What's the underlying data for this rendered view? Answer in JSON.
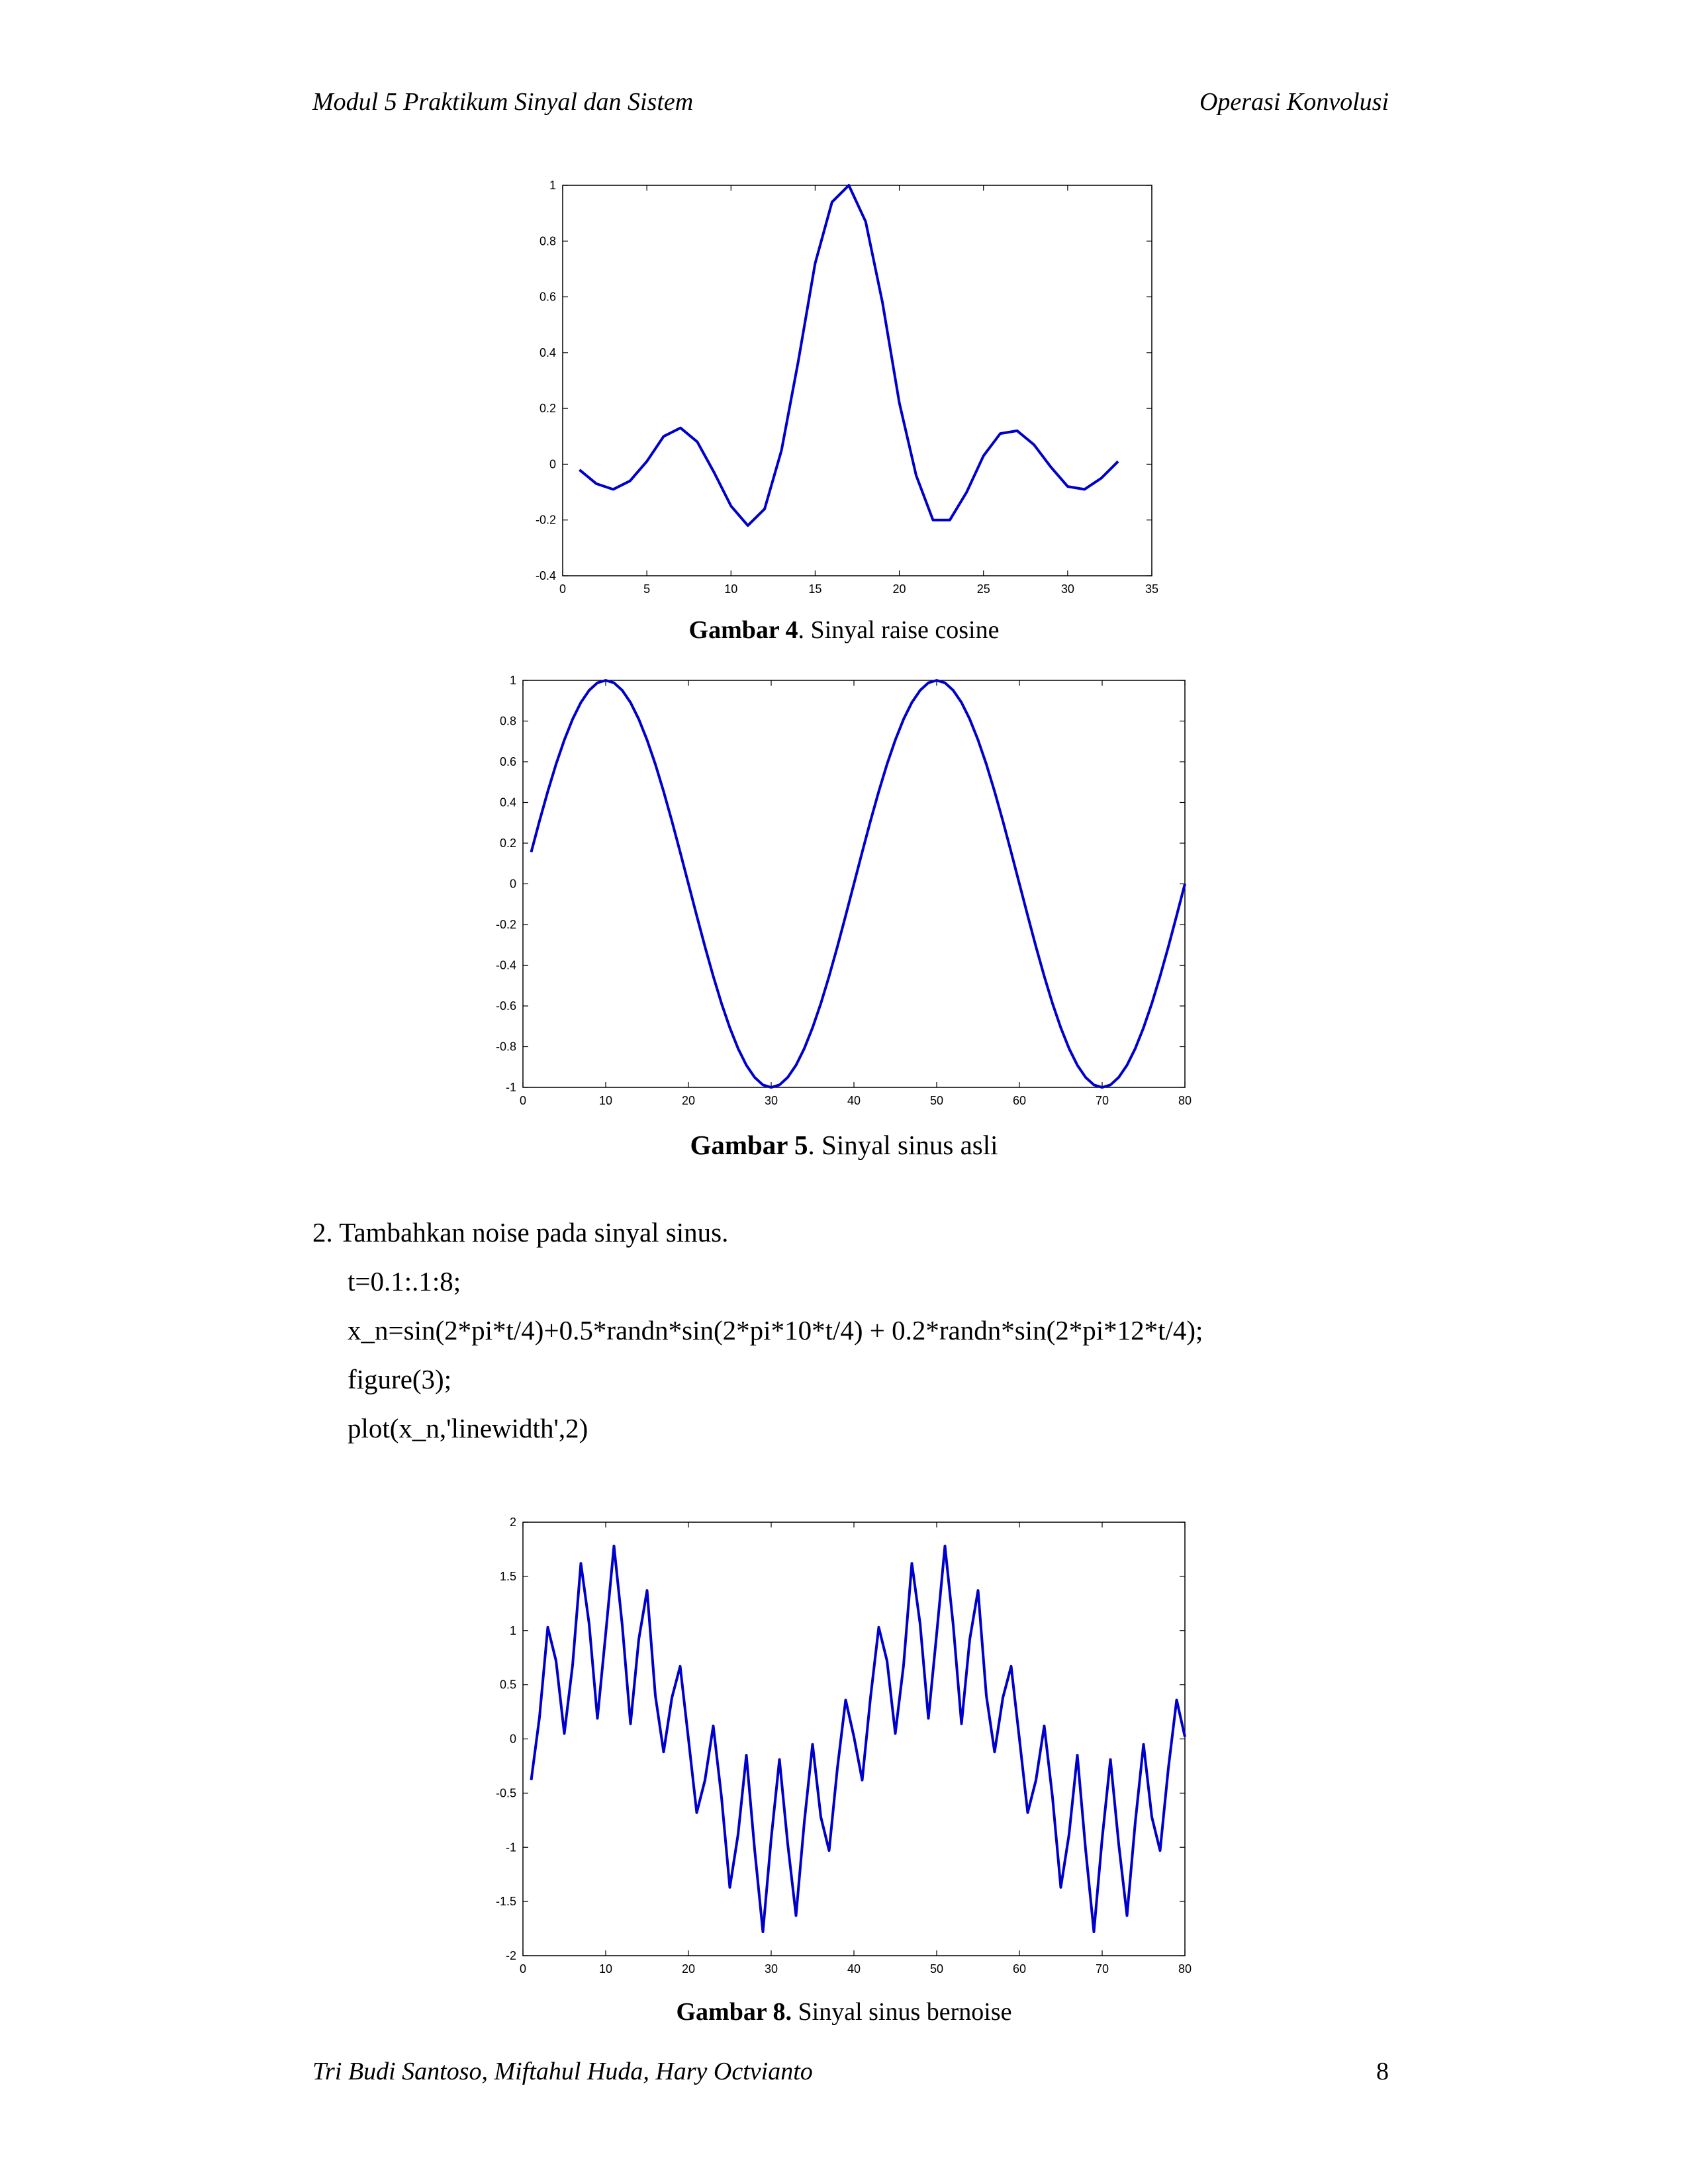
{
  "header": {
    "left": "Modul 5 Praktikum Sinyal dan Sistem",
    "right": "Operasi Konvolusi"
  },
  "footer": {
    "authors": "Tri Budi Santoso, Miftahul Huda, Hary Octvianto",
    "page_number": "8"
  },
  "figures": [
    {
      "label": "Gambar 4",
      "caption": ". Sinyal raise cosine"
    },
    {
      "label": "Gambar 5",
      "caption": ". Sinyal sinus asli"
    },
    {
      "label": "Gambar 8.",
      "caption": " Sinyal sinus bernoise"
    }
  ],
  "step": {
    "text": "2. Tambahkan noise pada sinyal sinus.",
    "code": [
      "t=0.1:.1:8;",
      "x_n=sin(2*pi*t/4)+0.5*randn*sin(2*pi*10*t/4) + 0.2*randn*sin(2*pi*12*t/4);",
      "figure(3);",
      "plot(x_n,'linewidth',2)"
    ]
  },
  "chart_data": [
    {
      "type": "line",
      "title": "",
      "xlabel": "",
      "ylabel": "",
      "xlim": [
        0,
        35
      ],
      "ylim": [
        -0.4,
        1
      ],
      "xticks": [
        "0",
        "5",
        "10",
        "15",
        "20",
        "25",
        "30",
        "35"
      ],
      "yticks": [
        "-0.4",
        "-0.2",
        "0",
        "0.2",
        "0.4",
        "0.6",
        "0.8",
        "1"
      ],
      "line_color": "#0000cc",
      "series": [
        {
          "x": [
            1,
            2,
            3,
            4,
            5,
            6,
            7,
            8,
            9,
            10,
            11,
            12,
            13,
            14,
            15,
            16,
            17,
            18,
            19,
            20,
            21,
            22,
            23,
            24,
            25,
            26,
            27,
            28,
            29,
            30,
            31,
            32,
            33
          ],
          "y": [
            -0.02,
            -0.07,
            -0.09,
            -0.06,
            0.01,
            0.1,
            0.13,
            0.08,
            -0.03,
            -0.15,
            -0.22,
            -0.16,
            0.05,
            0.37,
            0.72,
            0.94,
            1.0,
            0.87,
            0.58,
            0.22,
            -0.04,
            -0.2,
            -0.2,
            -0.1,
            0.03,
            0.11,
            0.12,
            0.07,
            -0.01,
            -0.08,
            -0.09,
            -0.05,
            0.01
          ]
        }
      ]
    },
    {
      "type": "line",
      "title": "",
      "xlabel": "",
      "ylabel": "",
      "xlim": [
        0,
        80
      ],
      "ylim": [
        -1,
        1
      ],
      "xticks": [
        "0",
        "10",
        "20",
        "30",
        "40",
        "50",
        "60",
        "70",
        "80"
      ],
      "yticks": [
        "-1",
        "-0.8",
        "-0.6",
        "-0.4",
        "-0.2",
        "0",
        "0.2",
        "0.4",
        "0.6",
        "0.8",
        "1"
      ],
      "line_color": "#0000cc",
      "series": [
        {
          "x": [
            1,
            2,
            3,
            4,
            5,
            6,
            7,
            8,
            9,
            10,
            11,
            12,
            13,
            14,
            15,
            16,
            17,
            18,
            19,
            20,
            21,
            22,
            23,
            24,
            25,
            26,
            27,
            28,
            29,
            30,
            31,
            32,
            33,
            34,
            35,
            36,
            37,
            38,
            39,
            40,
            41,
            42,
            43,
            44,
            45,
            46,
            47,
            48,
            49,
            50,
            51,
            52,
            53,
            54,
            55,
            56,
            57,
            58,
            59,
            60,
            61,
            62,
            63,
            64,
            65,
            66,
            67,
            68,
            69,
            70,
            71,
            72,
            73,
            74,
            75,
            76,
            77,
            78,
            79,
            80
          ],
          "y": [
            0.156,
            0.309,
            0.454,
            0.588,
            0.707,
            0.809,
            0.891,
            0.951,
            0.988,
            1.0,
            0.988,
            0.951,
            0.891,
            0.809,
            0.707,
            0.588,
            0.454,
            0.309,
            0.156,
            0.0,
            -0.156,
            -0.309,
            -0.454,
            -0.588,
            -0.707,
            -0.809,
            -0.891,
            -0.951,
            -0.988,
            -1.0,
            -0.988,
            -0.951,
            -0.891,
            -0.809,
            -0.707,
            -0.588,
            -0.454,
            -0.309,
            -0.156,
            0.0,
            0.156,
            0.309,
            0.454,
            0.588,
            0.707,
            0.809,
            0.891,
            0.951,
            0.988,
            1.0,
            0.988,
            0.951,
            0.891,
            0.809,
            0.707,
            0.588,
            0.454,
            0.309,
            0.156,
            0.0,
            -0.156,
            -0.309,
            -0.454,
            -0.588,
            -0.707,
            -0.809,
            -0.891,
            -0.951,
            -0.988,
            -1.0,
            -0.988,
            -0.951,
            -0.891,
            -0.809,
            -0.707,
            -0.588,
            -0.454,
            -0.309,
            -0.156,
            0.0
          ]
        }
      ]
    },
    {
      "type": "line",
      "title": "",
      "xlabel": "",
      "ylabel": "",
      "xlim": [
        0,
        80
      ],
      "ylim": [
        -2,
        2
      ],
      "xticks": [
        "0",
        "10",
        "20",
        "30",
        "40",
        "50",
        "60",
        "70",
        "80"
      ],
      "yticks": [
        "-2",
        "-1.5",
        "-1",
        "-0.5",
        "0",
        "0.5",
        "1",
        "1.5",
        "2"
      ],
      "line_color": "#0000cc",
      "series": [
        {
          "x": [
            1,
            2,
            3,
            4,
            5,
            6,
            7,
            8,
            9,
            10,
            11,
            12,
            13,
            14,
            15,
            16,
            17,
            18,
            19,
            20,
            21,
            22,
            23,
            24,
            25,
            26,
            27,
            28,
            29,
            30,
            31,
            32,
            33,
            34,
            35,
            36,
            37,
            38,
            39,
            40,
            41,
            42,
            43,
            44,
            45,
            46,
            47,
            48,
            49,
            50,
            51,
            52,
            53,
            54,
            55,
            56,
            57,
            58,
            59,
            60,
            61,
            62,
            63,
            64,
            65,
            66,
            67,
            68,
            69,
            70,
            71,
            72,
            73,
            74,
            75,
            76,
            77,
            78,
            79,
            80
          ],
          "y": [
            -0.38,
            0.2,
            1.03,
            0.72,
            0.05,
            0.68,
            1.62,
            1.06,
            0.19,
            0.97,
            1.78,
            1.05,
            0.14,
            0.92,
            1.37,
            0.4,
            -0.12,
            0.38,
            0.67,
            0.0,
            -0.68,
            -0.38,
            0.12,
            -0.54,
            -1.37,
            -0.88,
            -0.15,
            -1.02,
            -1.78,
            -0.92,
            -0.19,
            -0.97,
            -1.63,
            -0.77,
            -0.05,
            -0.72,
            -1.03,
            -0.27,
            0.36,
            0.02,
            -0.38,
            0.38,
            1.03,
            0.72,
            0.05,
            0.68,
            1.62,
            1.06,
            0.19,
            0.97,
            1.78,
            1.05,
            0.14,
            0.92,
            1.37,
            0.4,
            -0.12,
            0.38,
            0.67,
            0.0,
            -0.68,
            -0.38,
            0.12,
            -0.54,
            -1.37,
            -0.88,
            -0.15,
            -1.02,
            -1.78,
            -0.92,
            -0.19,
            -0.97,
            -1.63,
            -0.77,
            -0.05,
            -0.72,
            -1.03,
            -0.27,
            0.36,
            0.02
          ]
        }
      ]
    }
  ]
}
